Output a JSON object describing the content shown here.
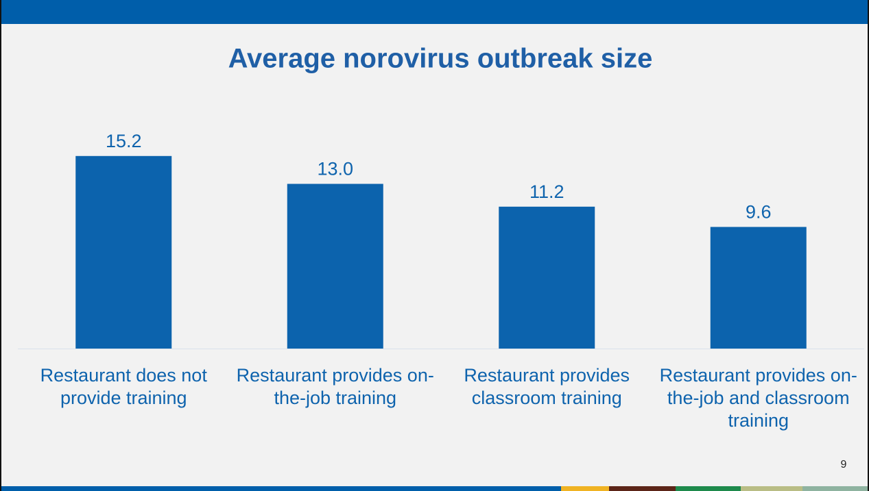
{
  "chart_data": {
    "type": "bar",
    "title": "Average norovirus outbreak size",
    "categories": [
      "Restaurant does not provide training",
      "Restaurant provides on-the-job training",
      "Restaurant provides classroom training",
      "Restaurant provides on-the-job and classroom training"
    ],
    "values": [
      15.2,
      13.0,
      11.2,
      9.6
    ],
    "value_labels": [
      "15.2",
      "13.0",
      "11.2",
      "9.6"
    ],
    "color": "#0c63ad",
    "ylim": [
      0,
      20
    ]
  },
  "page_number": "9"
}
